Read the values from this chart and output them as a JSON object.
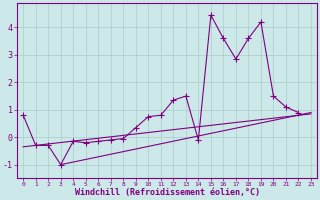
{
  "background_color": "#cce8e8",
  "grid_color": "#aacccc",
  "line_color": "#800080",
  "xlabel": "Windchill (Refroidissement éolien,°C)",
  "ylim": [
    -1.5,
    4.9
  ],
  "xlim": [
    -0.5,
    23.5
  ],
  "line1_x": [
    0,
    1,
    2,
    3,
    4,
    5,
    6,
    7,
    8,
    9,
    10,
    11,
    12,
    13,
    14,
    15,
    16,
    17,
    18,
    19,
    20,
    21,
    22,
    23
  ],
  "line1_y": [
    0.8,
    -0.3,
    -0.3,
    -1.0,
    -0.15,
    -0.2,
    -0.15,
    -0.1,
    -0.05,
    0.35,
    0.75,
    0.8,
    1.35,
    1.5,
    -0.1,
    4.45,
    3.6,
    2.85,
    3.6,
    4.2,
    1.5,
    1.1,
    0.9,
    null
  ],
  "line2_x": [
    3,
    23
  ],
  "line2_y": [
    -1.0,
    0.9
  ],
  "line3_x": [
    0,
    23
  ],
  "line3_y": [
    -0.35,
    0.85
  ],
  "yticks": [
    -1,
    0,
    1,
    2,
    3,
    4
  ],
  "ytick_labels": [
    "-1",
    "0",
    "1",
    "2",
    "3",
    "4"
  ],
  "xtick_fontsize": 4.5,
  "ytick_fontsize": 6.0,
  "xlabel_fontsize": 6.0
}
